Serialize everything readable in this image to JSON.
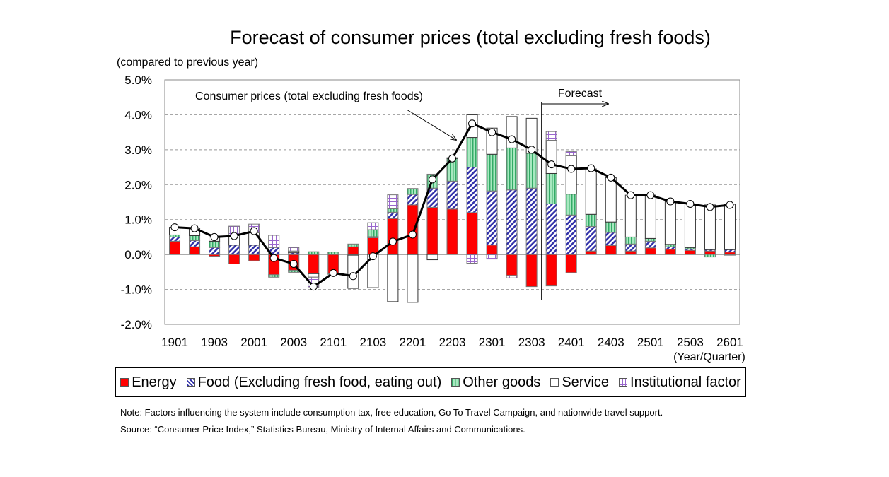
{
  "chart_data": {
    "type": "bar",
    "title": "Forecast of consumer prices (total excluding fresh foods)",
    "ylabel": "(compared to previous year)",
    "xlabel": "(Year/Quarter)",
    "ylim": [
      -2.0,
      5.0
    ],
    "yticks": [
      "5.0%",
      "4.0%",
      "3.0%",
      "2.0%",
      "1.0%",
      "0.0%",
      "-1.0%",
      "-2.0%"
    ],
    "ytick_values": [
      5,
      4,
      3,
      2,
      1,
      0,
      -1,
      -2
    ],
    "xtick_labels": [
      "1901",
      "1903",
      "2001",
      "2003",
      "2101",
      "2103",
      "2201",
      "2203",
      "2301",
      "2303",
      "2401",
      "2403",
      "2501",
      "2503",
      "2601"
    ],
    "categories": [
      "1901",
      "1902",
      "1903",
      "1904",
      "2001",
      "2002",
      "2003",
      "2004",
      "2101",
      "2102",
      "2103",
      "2104",
      "2201",
      "2202",
      "2203",
      "2204",
      "2301",
      "2302",
      "2303",
      "2304",
      "2401",
      "2402",
      "2403",
      "2404",
      "2501",
      "2502",
      "2503",
      "2504",
      "2601"
    ],
    "stacked": true,
    "series": [
      {
        "name": "Energy",
        "color": "#ff0000",
        "values": [
          0.38,
          0.22,
          -0.05,
          -0.27,
          -0.18,
          -0.58,
          -0.45,
          -0.55,
          -0.55,
          0.22,
          0.48,
          1.03,
          1.42,
          1.35,
          1.3,
          1.2,
          0.27,
          -0.6,
          -0.92,
          -0.9,
          -0.52,
          0.1,
          0.26,
          0.1,
          0.19,
          0.15,
          0.12,
          0.1,
          0.07
        ]
      },
      {
        "name": "Food (Excluding fresh food, eating out)",
        "color": "#3333aa",
        "values": [
          0.12,
          0.18,
          0.2,
          0.27,
          0.27,
          0.2,
          0.05,
          0.0,
          -0.02,
          -0.02,
          0.03,
          0.18,
          0.3,
          0.55,
          0.8,
          1.3,
          1.55,
          1.85,
          1.9,
          1.45,
          1.13,
          0.7,
          0.37,
          0.2,
          0.19,
          0.07,
          0.04,
          0.04,
          0.07
        ]
      },
      {
        "name": "Other goods",
        "color": "#33aa66",
        "values": [
          0.06,
          0.14,
          0.18,
          0.0,
          0.0,
          -0.07,
          -0.06,
          0.08,
          0.07,
          0.08,
          0.2,
          0.1,
          0.17,
          0.4,
          0.65,
          0.85,
          1.05,
          1.2,
          1.0,
          0.87,
          0.6,
          0.35,
          0.3,
          0.2,
          0.08,
          0.07,
          0.04,
          -0.07,
          -0.02
        ]
      },
      {
        "name": "Service",
        "color": "#ffffff",
        "values": [
          0.22,
          0.22,
          0.12,
          0.27,
          0.35,
          0.0,
          0.05,
          -0.1,
          0.0,
          -0.95,
          -0.95,
          -1.35,
          -1.37,
          -0.15,
          0.02,
          0.65,
          0.75,
          0.9,
          1.0,
          0.95,
          1.1,
          1.3,
          1.27,
          1.2,
          1.24,
          1.22,
          1.25,
          1.28,
          1.3
        ]
      },
      {
        "name": "Institutional factor",
        "color": "#9966cc",
        "values": [
          0,
          0,
          0,
          0.27,
          0.25,
          0.35,
          0.1,
          -0.3,
          0,
          0,
          0.2,
          0.4,
          0,
          0,
          0,
          -0.25,
          -0.13,
          -0.07,
          0,
          0.25,
          0.12,
          0,
          0,
          0,
          0,
          0,
          0,
          0,
          0
        ]
      }
    ],
    "line": {
      "name": "Consumer prices (total excluding fresh foods)",
      "values": [
        0.78,
        0.75,
        0.5,
        0.53,
        0.67,
        -0.1,
        -0.27,
        -0.92,
        -0.53,
        -0.62,
        -0.05,
        0.37,
        0.57,
        2.15,
        2.75,
        3.75,
        3.5,
        3.3,
        3.0,
        2.58,
        2.45,
        2.47,
        2.2,
        1.7,
        1.7,
        1.52,
        1.45,
        1.36,
        1.42
      ]
    },
    "forecast_label": "Forecast",
    "forecast_start": "2304",
    "grid": true,
    "legend": "bottom"
  },
  "notes": {
    "note": "Note: Factors influencing the system include consumption tax, free education, Go To Travel Campaign, and nationwide travel support.",
    "source": "Source: “Consumer Price Index,” Statistics Bureau, Ministry of Internal Affairs and Communications."
  }
}
